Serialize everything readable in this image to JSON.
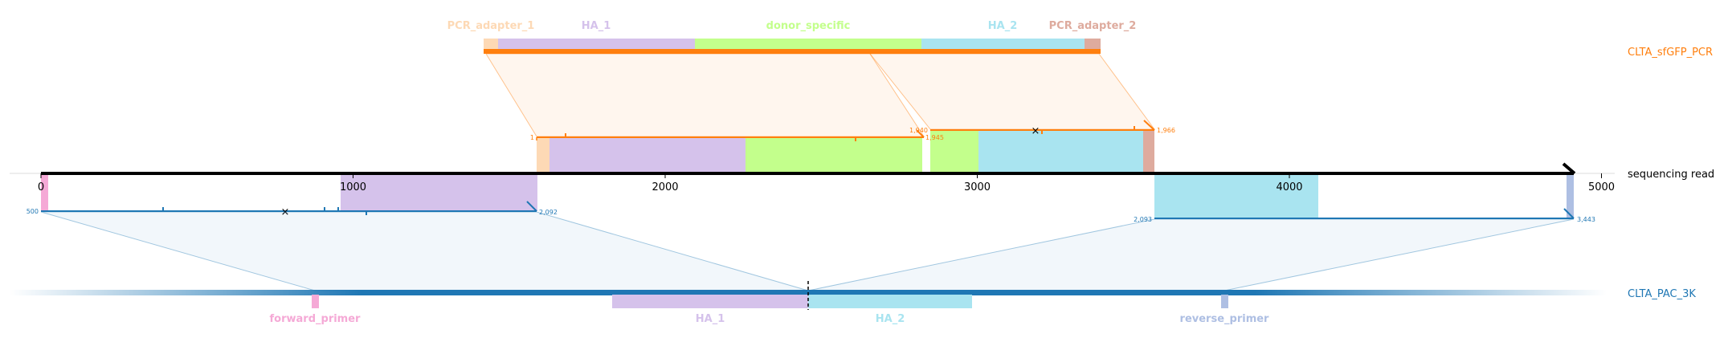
{
  "donor_top": {
    "name": "CLTA_sfGFP_PCR",
    "features": {
      "pcr_adapter_1": "PCR_adapter_1",
      "ha_1": "HA_1",
      "donor_specific": "donor_specific",
      "ha_2": "HA_2",
      "pcr_adapter_2": "PCR_adapter_2"
    },
    "alignment_1": {
      "start": "1",
      "end": "1,940"
    },
    "alignment_2": {
      "start": "1,945",
      "end": "1,966"
    }
  },
  "read": {
    "name": "sequencing read",
    "ticks": [
      "0",
      "1000",
      "2000",
      "3000",
      "4000",
      "5000"
    ],
    "alignment_1": {
      "start": "500",
      "end": "2,092"
    },
    "alignment_2": {
      "start": "2,093",
      "end": "3,443"
    }
  },
  "target_bottom": {
    "name": "CLTA_PAC_3K",
    "features": {
      "forward_primer": "forward_primer",
      "ha_1": "HA_1",
      "ha_2": "HA_2",
      "reverse_primer": "reverse_primer"
    }
  },
  "colors": {
    "orange": "#ff7f0e",
    "blue": "#1f77b4",
    "pcr_adapter_1": "#fdd9b5",
    "ha_1": "#d5c2eb",
    "donor_specific": "#c3ff8c",
    "ha_2": "#a9e4f0",
    "pcr_adapter_2": "#deab9e",
    "forward_primer": "#f5a9d6",
    "reverse_primer": "#aebfe3"
  }
}
